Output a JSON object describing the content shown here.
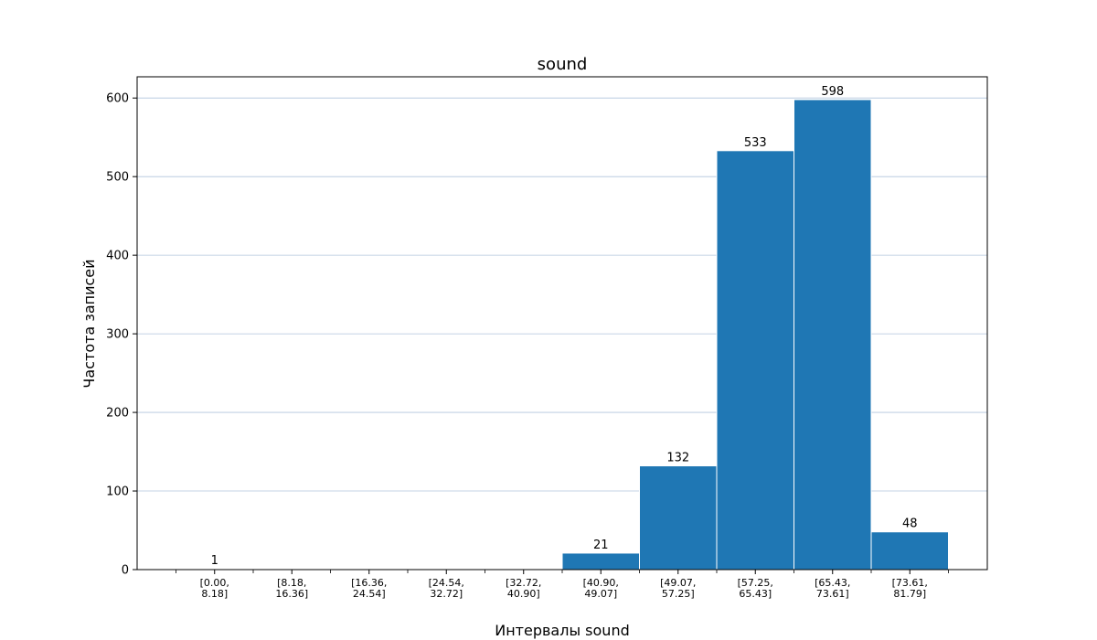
{
  "chart_data": {
    "type": "bar",
    "title": "sound",
    "xlabel": "Интервалы sound",
    "ylabel": "Частота записей",
    "categories": [
      [
        "[0.00,",
        "8.18]"
      ],
      [
        "[8.18,",
        "16.36]"
      ],
      [
        "[16.36,",
        "24.54]"
      ],
      [
        "[24.54,",
        "32.72]"
      ],
      [
        "[32.72,",
        "40.90]"
      ],
      [
        "[40.90,",
        "49.07]"
      ],
      [
        "[49.07,",
        "57.25]"
      ],
      [
        "[57.25,",
        "65.43]"
      ],
      [
        "[65.43,",
        "73.61]"
      ],
      [
        "[73.61,",
        "81.79]"
      ]
    ],
    "values": [
      1,
      0,
      0,
      0,
      0,
      21,
      132,
      533,
      598,
      48
    ],
    "data_labels": [
      "1",
      "",
      "",
      "",
      "",
      "21",
      "132",
      "533",
      "598",
      "48"
    ],
    "ylim": [
      0,
      627
    ],
    "yticks": [
      0,
      100,
      200,
      300,
      400,
      500,
      600
    ],
    "grid": "y",
    "colors": {
      "bar": "#1f77b4",
      "bar_edge": "#ffffff",
      "grid": "#b0c4de",
      "axis": "#000000"
    }
  }
}
